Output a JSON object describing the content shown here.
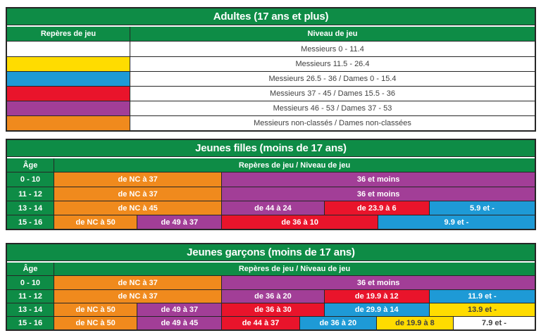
{
  "colors": {
    "green": "#0E8C46",
    "orange": "#F08A1D",
    "purple": "#A23E97",
    "red": "#E9142B",
    "blue": "#1E9AD6",
    "yellow": "#FFDC00",
    "white": "#FFFFFF",
    "border": "#262626",
    "body_text": "#404040",
    "header_text": "#FFFFFF"
  },
  "chart_data": [
    {
      "type": "table",
      "id": "adultes",
      "title": "Adultes (17 ans et plus)",
      "columns": [
        "Repères de jeu",
        "Niveau de jeu"
      ],
      "rows": [
        {
          "swatch_color": "white",
          "niveau": "Messieurs 0 - 11.4"
        },
        {
          "swatch_color": "yellow",
          "niveau": "Messieurs 11.5 - 26.4"
        },
        {
          "swatch_color": "blue",
          "niveau": "Messieurs 26.5 - 36 / Dames 0 - 15.4"
        },
        {
          "swatch_color": "red",
          "niveau": "Messieurs 37 - 45 / Dames 15.5 - 36"
        },
        {
          "swatch_color": "purple",
          "niveau": "Messieurs 46 - 53 / Dames 37 - 53"
        },
        {
          "swatch_color": "orange",
          "niveau": "Messieurs non-classés / Dames non-classées"
        }
      ]
    },
    {
      "type": "table",
      "id": "jeunes-filles",
      "title": "Jeunes filles (moins de 17 ans)",
      "columns": [
        "Âge",
        "Repères de jeu / Niveau de jeu"
      ],
      "rows": [
        {
          "age": "0 - 10",
          "segments": [
            {
              "color": "orange",
              "label": "de NC à 37",
              "width_pct": 34.8
            },
            {
              "color": "purple",
              "label": "36 et moins",
              "width_pct": 65.2
            }
          ]
        },
        {
          "age": "11 - 12",
          "segments": [
            {
              "color": "orange",
              "label": "de NC à 37",
              "width_pct": 34.8
            },
            {
              "color": "purple",
              "label": "36 et moins",
              "width_pct": 65.2
            }
          ]
        },
        {
          "age": "13 - 14",
          "segments": [
            {
              "color": "orange",
              "label": "de NC à 45",
              "width_pct": 34.8
            },
            {
              "color": "purple",
              "label": "de 44 à 24",
              "width_pct": 21.3
            },
            {
              "color": "red",
              "label": "de 23.9 à 6",
              "width_pct": 21.9
            },
            {
              "color": "blue",
              "label": "5.9 et -",
              "width_pct": 22.0
            }
          ]
        },
        {
          "age": "15 - 16",
          "segments": [
            {
              "color": "orange",
              "label": "de NC à 50",
              "width_pct": 17.2
            },
            {
              "color": "purple",
              "label": "de 49 à 37",
              "width_pct": 17.6
            },
            {
              "color": "red",
              "label": "de 36 à 10",
              "width_pct": 32.5
            },
            {
              "color": "blue",
              "label": "9.9 et -",
              "width_pct": 32.7
            }
          ]
        }
      ]
    },
    {
      "type": "table",
      "id": "jeunes-garcons",
      "title": "Jeunes garçons (moins de 17 ans)",
      "columns": [
        "Âge",
        "Repères de jeu / Niveau de jeu"
      ],
      "rows": [
        {
          "age": "0 - 10",
          "segments": [
            {
              "color": "orange",
              "label": "de NC à 37",
              "width_pct": 34.8
            },
            {
              "color": "purple",
              "label": "36 et moins",
              "width_pct": 65.2
            }
          ]
        },
        {
          "age": "11 - 12",
          "segments": [
            {
              "color": "orange",
              "label": "de NC à 37",
              "width_pct": 34.8
            },
            {
              "color": "purple",
              "label": "de 36 à 20",
              "width_pct": 21.3
            },
            {
              "color": "red",
              "label": "de 19.9 à 12",
              "width_pct": 21.9
            },
            {
              "color": "blue",
              "label": "11.9 et -",
              "width_pct": 22.0
            }
          ]
        },
        {
          "age": "13 - 14",
          "segments": [
            {
              "color": "orange",
              "label": "de NC à 50",
              "width_pct": 17.2
            },
            {
              "color": "purple",
              "label": "de 49 à 37",
              "width_pct": 17.6
            },
            {
              "color": "red",
              "label": "de 36 à 30",
              "width_pct": 21.3
            },
            {
              "color": "blue",
              "label": "de 29.9 à 14",
              "width_pct": 21.9
            },
            {
              "color": "yellow",
              "label": "13.9 et -",
              "width_pct": 22.0
            }
          ]
        },
        {
          "age": "15 - 16",
          "segments": [
            {
              "color": "orange",
              "label": "de NC à 50",
              "width_pct": 17.2
            },
            {
              "color": "purple",
              "label": "de 49 à 45",
              "width_pct": 17.6
            },
            {
              "color": "red",
              "label": "de 44 à 37",
              "width_pct": 16.2
            },
            {
              "color": "blue",
              "label": "de 36 à 20",
              "width_pct": 16.0
            },
            {
              "color": "yellow",
              "label": "de 19.9 à 8",
              "width_pct": 16.0
            },
            {
              "color": "white",
              "label": "7.9 et -",
              "width_pct": 17.0
            }
          ]
        }
      ]
    }
  ]
}
